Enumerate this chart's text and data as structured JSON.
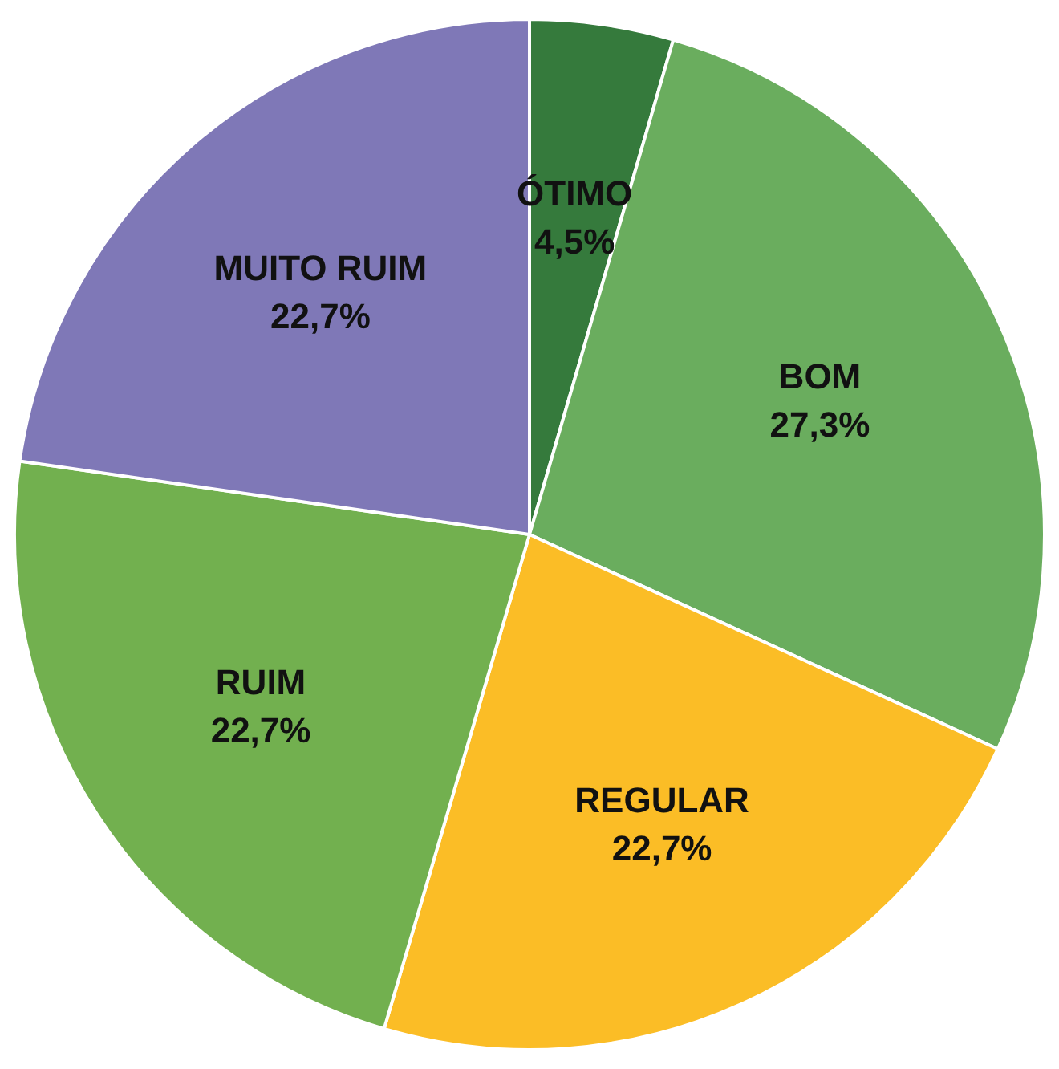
{
  "chart_data": {
    "type": "pie",
    "categories": [
      "ÓTIMO",
      "BOM",
      "REGULAR",
      "RUIM",
      "MUITO RUIM"
    ],
    "values": [
      4.5,
      27.3,
      22.7,
      22.7,
      22.7
    ],
    "value_labels": [
      "4,5%",
      "27,3%",
      "22,7%",
      "22,7%",
      "22,7%"
    ],
    "colors": [
      "#357a3c",
      "#6aad5e",
      "#fbbd26",
      "#72b04f",
      "#7f78b7"
    ],
    "legend": false
  }
}
